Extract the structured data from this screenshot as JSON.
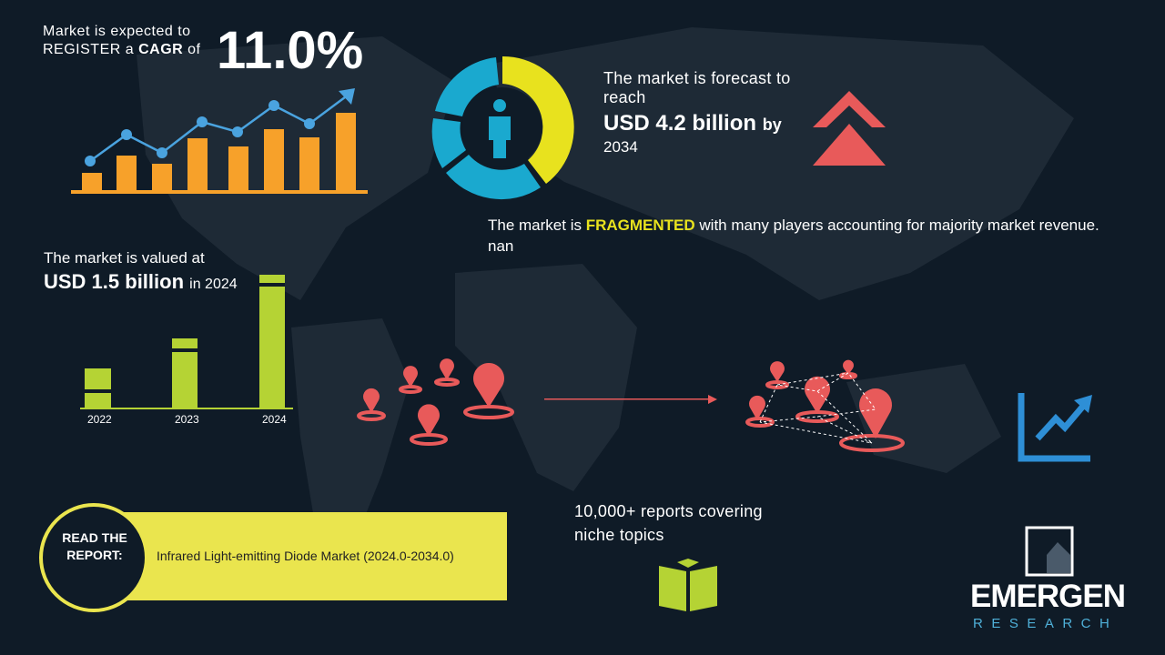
{
  "cagr": {
    "intro": "Market is expected to",
    "register": "REGISTER a",
    "cagr_word": "CAGR",
    "of": "of",
    "value": "11.0%"
  },
  "forecast": {
    "intro": "The market is forecast to reach",
    "amount": "USD 4.2 billion",
    "by": "by",
    "year": "2034"
  },
  "fragmentation": {
    "intro": "The market is",
    "status": "FRAGMENTED",
    "detail": "with many players accounting for majority market revenue. nan"
  },
  "valuation": {
    "intro": "The market is valued at",
    "amount": "USD 1.5 billion",
    "year": "in 2024",
    "bar_years": [
      "2022",
      "2023",
      "2024"
    ]
  },
  "reports": {
    "text": "10,000+ reports covering niche topics"
  },
  "read_report": {
    "label": "READ THE REPORT:",
    "title": "Infrared Light-emitting Diode Market (2024.0-2034.0)"
  },
  "logo": {
    "name": "EMERGEN",
    "tagline": "RESEARCH"
  }
}
